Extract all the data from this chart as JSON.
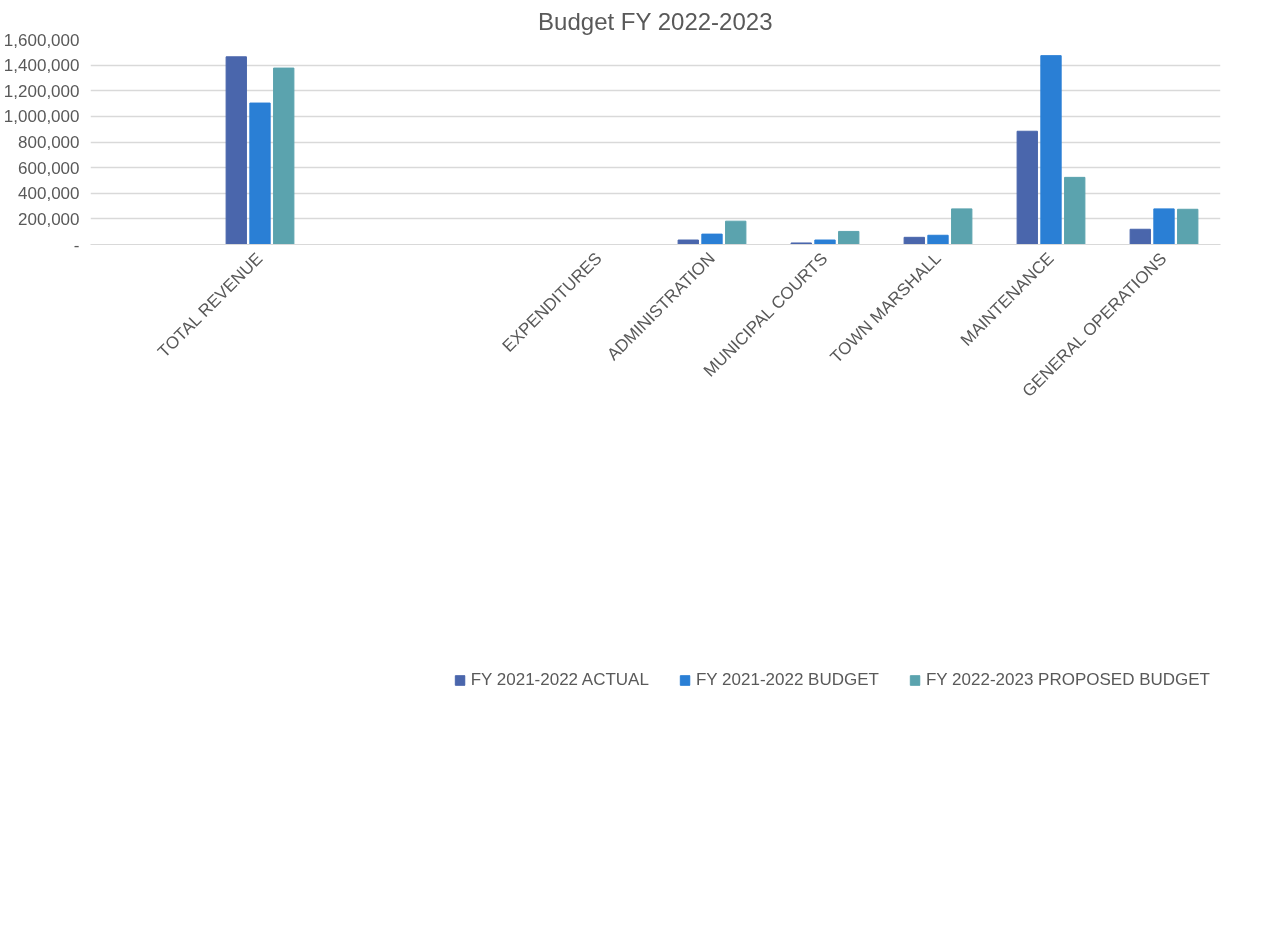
{
  "chart_data": {
    "type": "bar",
    "title": "Budget FY 2022-2023",
    "categories": [
      null,
      "TOTAL REVENUE",
      null,
      null,
      "EXPENDITURES",
      "ADMINISTRATION",
      "MUNICIPAL COURTS",
      "TOWN MARSHALL",
      "MAINTENANCE",
      "GENERAL OPERATIONS"
    ],
    "series": [
      {
        "name": "FY 2021-2022 ACTUAL",
        "color": "#4a66ac",
        "values": [
          null,
          1465000,
          null,
          null,
          null,
          35000,
          12000,
          56000,
          884000,
          119000
        ]
      },
      {
        "name": "FY 2021-2022 BUDGET",
        "color": "#2a7fd5",
        "values": [
          null,
          1104000,
          null,
          null,
          null,
          81000,
          35000,
          72000,
          1474000,
          278000
        ]
      },
      {
        "name": "FY 2022-2023 PROPOSED BUDGET",
        "color": "#5ba3ae",
        "values": [
          null,
          1377000,
          null,
          null,
          null,
          182000,
          102000,
          278000,
          524000,
          275000
        ]
      }
    ],
    "ylim": [
      0,
      1600000
    ],
    "yticks": [
      {
        "value": 0,
        "label": "-"
      },
      {
        "value": 200000,
        "label": "200,000"
      },
      {
        "value": 400000,
        "label": "400,000"
      },
      {
        "value": 600000,
        "label": "600,000"
      },
      {
        "value": 800000,
        "label": "800,000"
      },
      {
        "value": 1000000,
        "label": "1,000,000"
      },
      {
        "value": 1200000,
        "label": "1,200,000"
      },
      {
        "value": 1400000,
        "label": "1,400,000"
      },
      {
        "value": 1600000,
        "label": "1,600,000"
      }
    ],
    "grid": "y",
    "legend": "bottom"
  }
}
